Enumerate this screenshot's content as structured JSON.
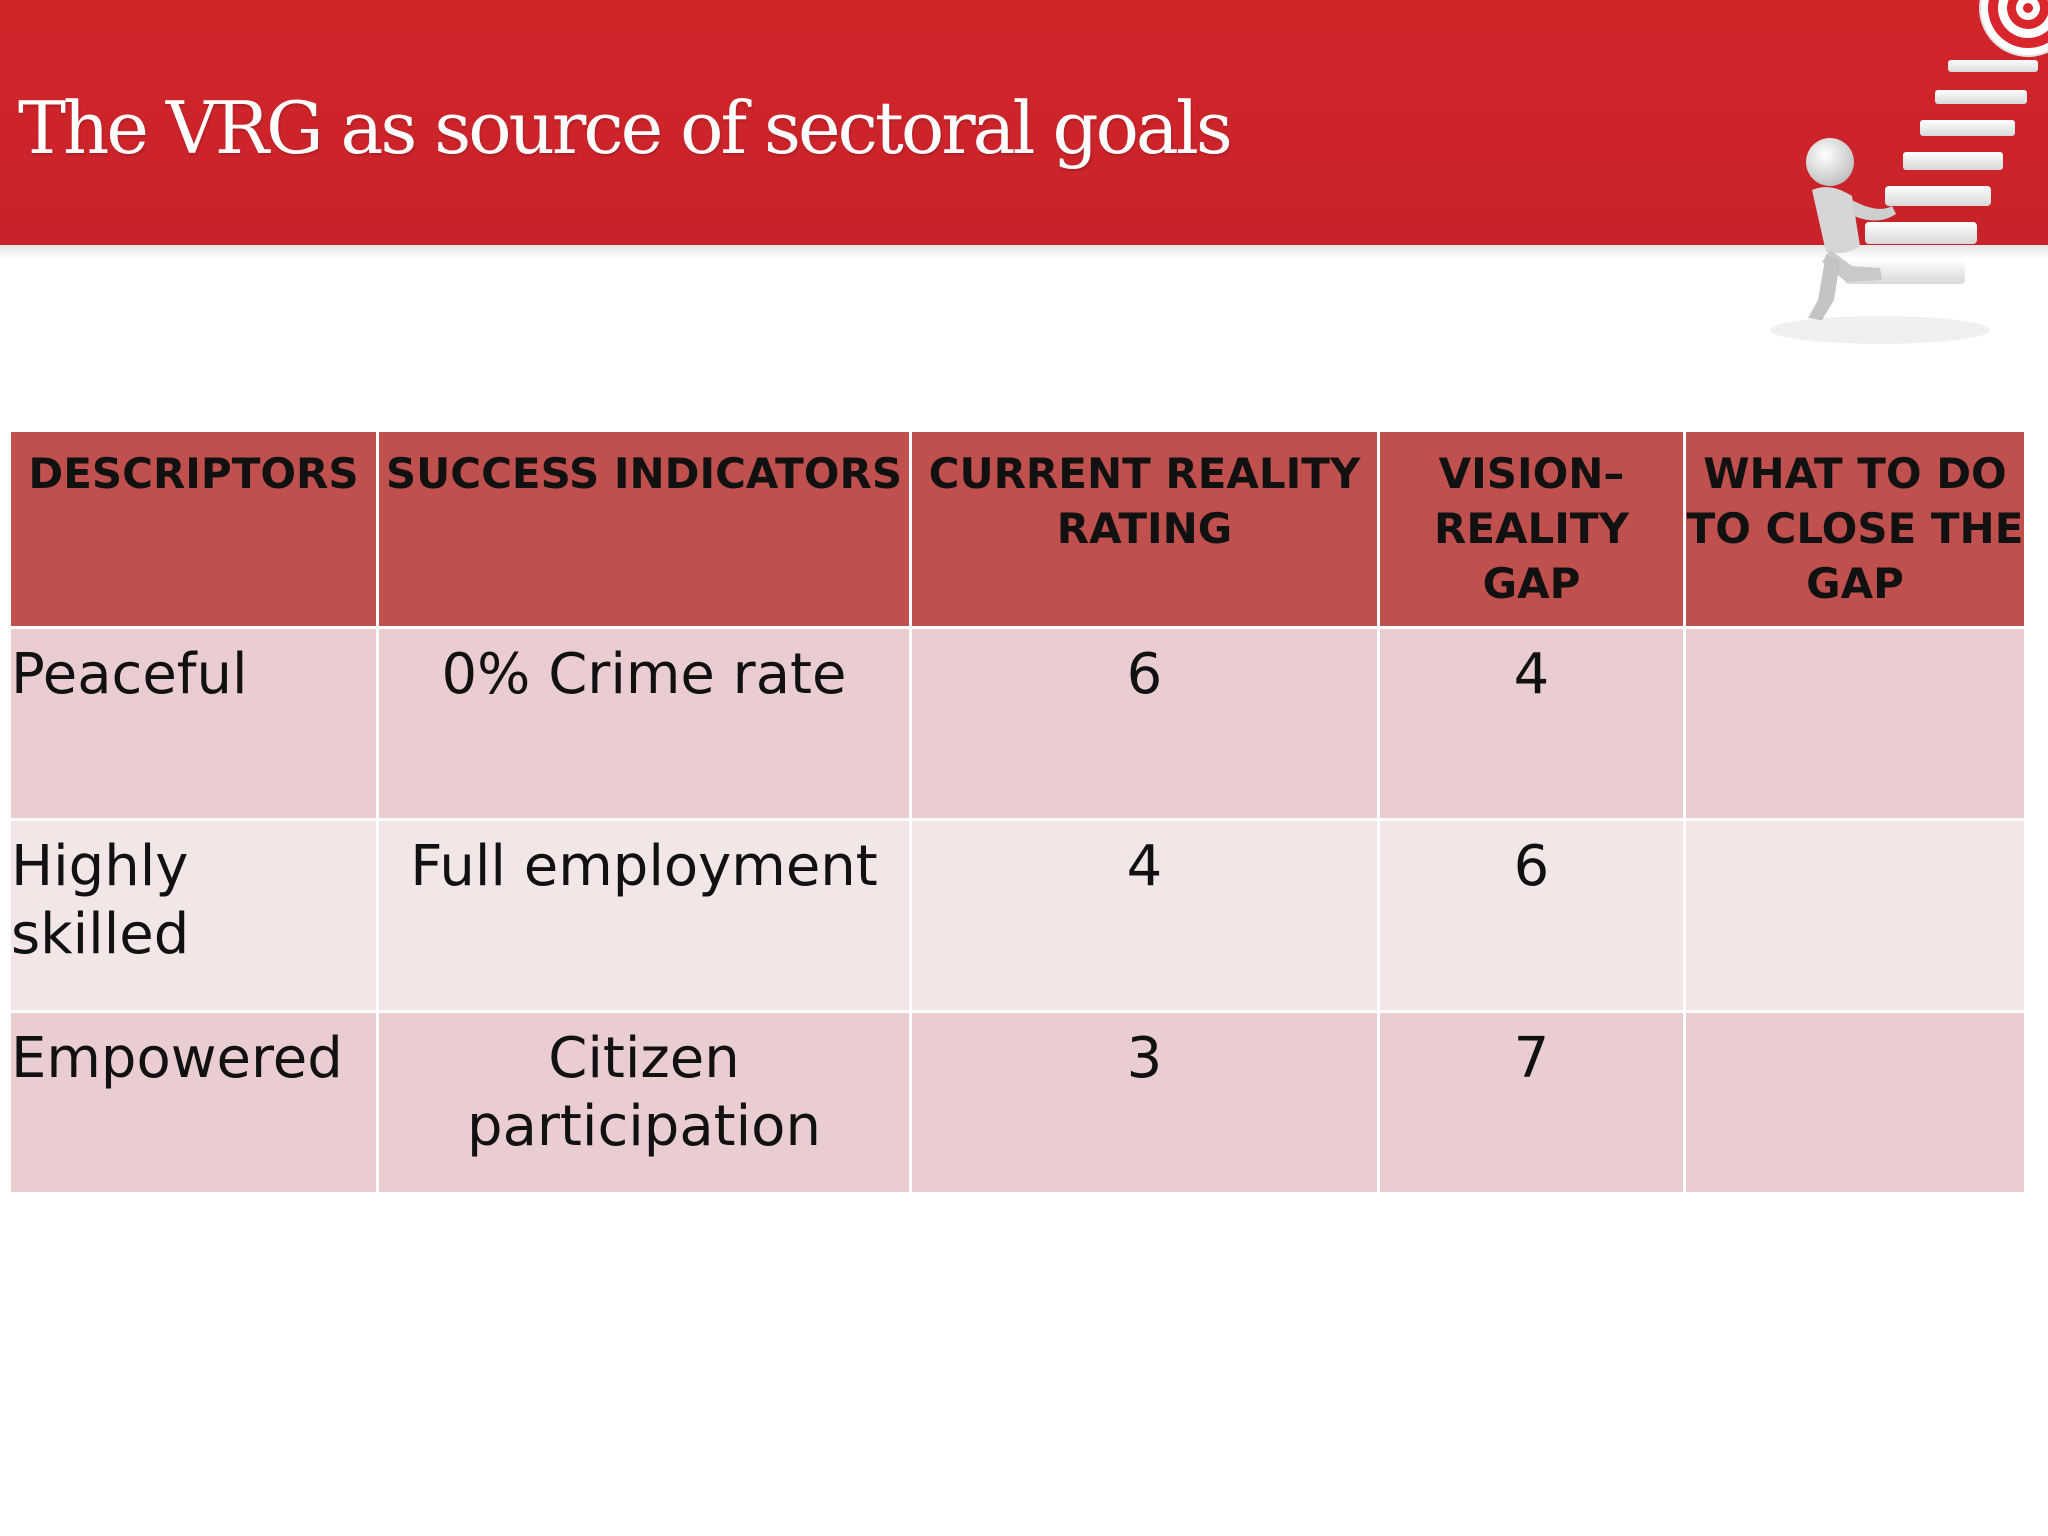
{
  "slide": {
    "title": "The VRG as source of sectoral goals"
  },
  "table": {
    "headers": [
      "DESCRIPTORS",
      "SUCCESS INDICATORS",
      "CURRENT REALITY RATING",
      "VISION–REALITY GAP",
      "WHAT TO DO TO CLOSE THE GAP"
    ],
    "rows": [
      {
        "descriptor": "Peaceful",
        "indicator": "0% Crime rate",
        "rating": "6",
        "gap": "4",
        "action": ""
      },
      {
        "descriptor": "Highly skilled",
        "indicator": "Full employment",
        "rating": "4",
        "gap": "6",
        "action": ""
      },
      {
        "descriptor": "Empowered",
        "indicator": "Citizen participation",
        "rating": "3",
        "gap": "7",
        "action": ""
      }
    ]
  },
  "colors": {
    "header_band": "#d2252a",
    "table_header": "#c0504d",
    "row_odd": "#e9cdd0",
    "row_even": "#f3e6e7"
  },
  "icons": {
    "decoration": "stairs-figure-target-icon"
  }
}
